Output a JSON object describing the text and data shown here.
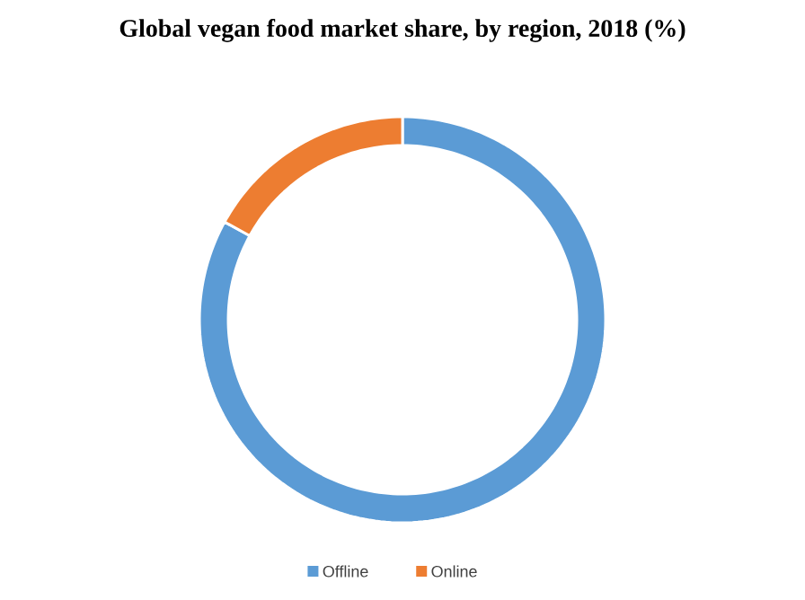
{
  "chart_data": {
    "type": "donut",
    "title": "Global vegan food market share, by region, 2018 (%)",
    "categories": [
      "Offline",
      "Online"
    ],
    "values": [
      83,
      17
    ],
    "colors": [
      "#5b9bd5",
      "#ed7d31"
    ],
    "legend": "bottom"
  }
}
